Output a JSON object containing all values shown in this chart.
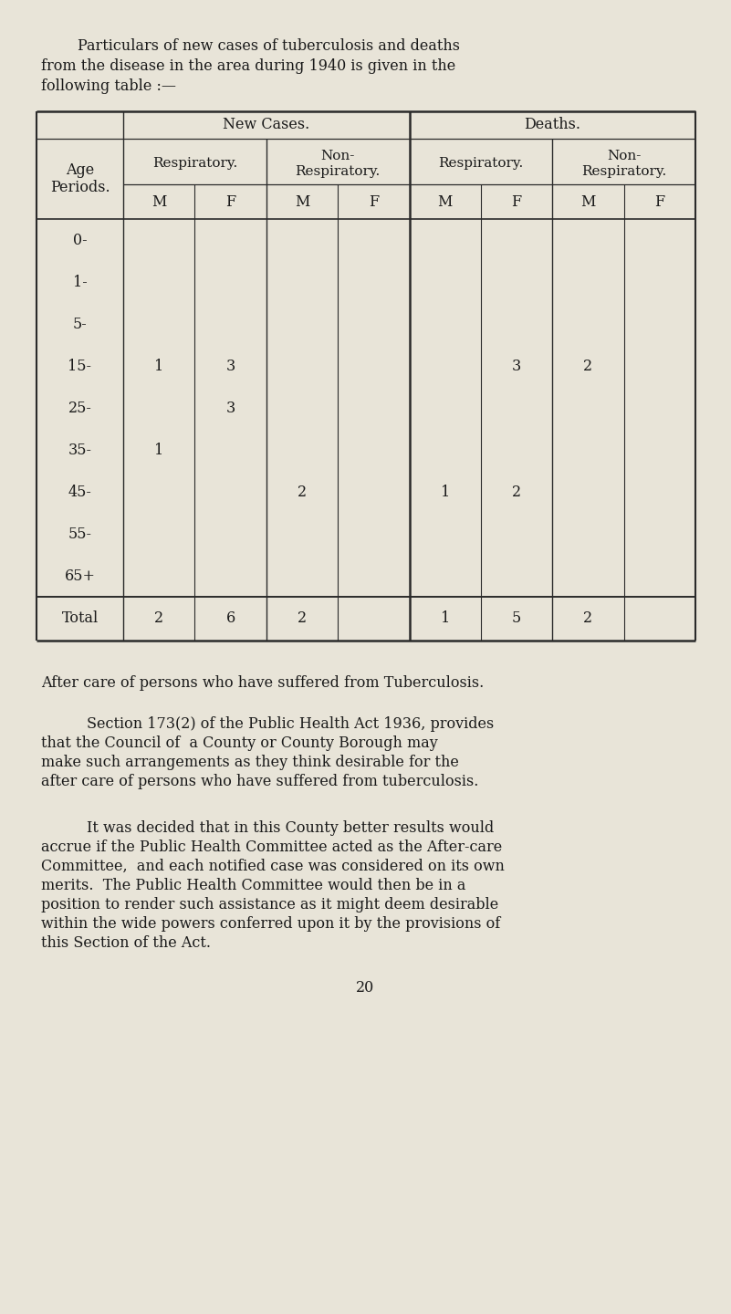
{
  "bg_color": "#e8e4d8",
  "text_color": "#1a1a1a",
  "line_color": "#2a2a2a",
  "title_lines": [
    "Particulars of new cases of tuberculosis and deaths",
    "from the disease in the area during 1940 is given in the",
    "following table :—"
  ],
  "title_indent": [
    0.85,
    0.45,
    0.45
  ],
  "age_periods": [
    "0-",
    "1-",
    "5-",
    "15-",
    "25-",
    "35-",
    "45-",
    "55-",
    "65+",
    "Total"
  ],
  "table_data": {
    "0-": [
      "",
      "",
      "",
      "",
      "",
      "",
      "",
      ""
    ],
    "1-": [
      "",
      "",
      "",
      "",
      "",
      "",
      "",
      ""
    ],
    "5-": [
      "",
      "",
      "",
      "",
      "",
      "",
      "",
      ""
    ],
    "15-": [
      "1",
      "3",
      "",
      "",
      "",
      "3",
      "2",
      ""
    ],
    "25-": [
      "",
      "3",
      "",
      "",
      "",
      "",
      "",
      ""
    ],
    "35-": [
      "1",
      "",
      "",
      "",
      "",
      "",
      "",
      ""
    ],
    "45-": [
      "",
      "",
      "2",
      "",
      "1",
      "2",
      "",
      ""
    ],
    "55-": [
      "",
      "",
      "",
      "",
      "",
      "",
      "",
      ""
    ],
    "65+": [
      "",
      "",
      "",
      "",
      "",
      "",
      "",
      ""
    ],
    "Total": [
      "2",
      "6",
      "2",
      "",
      "1",
      "5",
      "2",
      ""
    ]
  },
  "after_care_heading": "After care of persons who have suffered from Tuberculosis.",
  "paragraph1_lines": [
    "Section 173(2) of the Public Health Act 1936, provides",
    "that the Council of  a County or County Borough may",
    "make such arrangements as they think desirable for the",
    "after care of persons who have suffered from tuberculosis."
  ],
  "paragraph1_indent": [
    0.95,
    0.45,
    0.45,
    0.45
  ],
  "paragraph2_lines": [
    "It was decided that in this County better results would",
    "accrue if the Public Health Committee acted as the After-care",
    "Committee,  and each notified case was considered on its own",
    "merits.  The Public Health Committee would then be in a",
    "position to render such assistance as it might deem desirable",
    "within the wide powers conferred upon it by the provisions of",
    "this Section of the Act."
  ],
  "paragraph2_indent": [
    0.95,
    0.45,
    0.45,
    0.45,
    0.45,
    0.45,
    0.45
  ],
  "page_number": "20",
  "font_size_title": 11.5,
  "font_size_table": 11.5,
  "font_size_text": 11.5,
  "fig_width": 8.01,
  "fig_height": 14.4,
  "dpi": 100
}
